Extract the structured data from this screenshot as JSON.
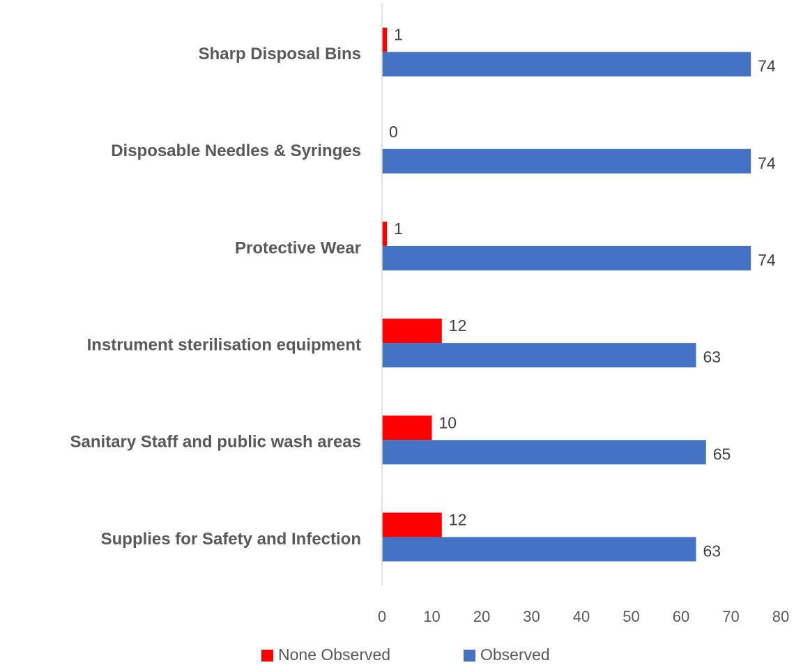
{
  "chart_data": {
    "type": "barh",
    "categories": [
      "Sharp Disposal Bins",
      "Disposable Needles & Syringes",
      "Protective Wear",
      "Instrument sterilisation equipment",
      "Sanitary Staff and public wash areas",
      "Supplies for Safety and Infection"
    ],
    "series": [
      {
        "name": "None Observed",
        "color": "#ff0000",
        "values": [
          1,
          0,
          1,
          12,
          10,
          12
        ]
      },
      {
        "name": "Observed",
        "color": "#4472c4",
        "values": [
          74,
          74,
          74,
          63,
          65,
          63
        ]
      }
    ],
    "xlim": [
      0,
      80
    ],
    "xticks": [
      0,
      10,
      20,
      30,
      40,
      50,
      60,
      70,
      80
    ],
    "grid": false,
    "legend": "bottom"
  }
}
